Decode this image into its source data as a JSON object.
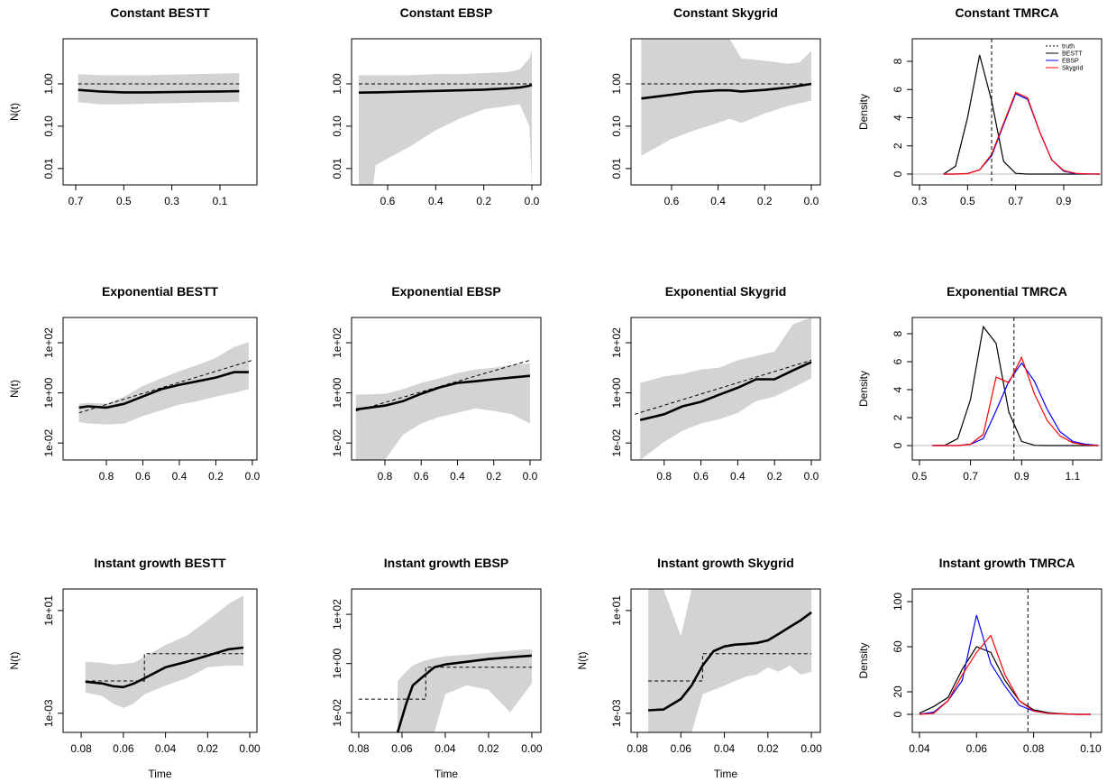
{
  "chart_data": [
    {
      "type": "skyline",
      "title": "Constant BESTT",
      "ylabel": "N(t)",
      "log_y": true,
      "band_color": "#d3d3d3",
      "line_color": "#000000",
      "x": [
        0.69,
        0.6,
        0.5,
        0.4,
        0.3,
        0.2,
        0.1,
        0.02
      ],
      "median": [
        0.72,
        0.66,
        0.63,
        0.63,
        0.64,
        0.65,
        0.66,
        0.67
      ],
      "upper": [
        1.7,
        1.6,
        1.6,
        1.6,
        1.65,
        1.7,
        1.75,
        1.8
      ],
      "lower": [
        0.37,
        0.33,
        0.33,
        0.34,
        0.35,
        0.36,
        0.37,
        0.38
      ],
      "truth_x": [
        0.69,
        0.02
      ],
      "truth": [
        1,
        1
      ],
      "xlim": [
        0.7525,
        -0.054
      ],
      "ylim": [
        0.0041,
        11.6
      ],
      "xticks": [
        0.7,
        0.5,
        0.3,
        0.1
      ],
      "yticks": [
        0.01,
        {
          "value": 0.1,
          "label": "0.10"
        },
        {
          "value": 1,
          "label": "1.00"
        }
      ]
    },
    {
      "type": "skyline",
      "title": "Constant EBSP",
      "log_y": true,
      "band_color": "#d3d3d3",
      "line_color": "#000000",
      "x": [
        0.72,
        0.66,
        0.65,
        0.5,
        0.4,
        0.3,
        0.2,
        0.1,
        0.05,
        0.01,
        0
      ],
      "median": [
        0.62,
        0.63,
        0.63,
        0.66,
        0.68,
        0.7,
        0.73,
        0.78,
        0.82,
        0.9,
        0.95
      ],
      "upper": [
        1.6,
        1.6,
        1.6,
        1.6,
        1.7,
        1.7,
        1.8,
        1.9,
        2.2,
        4,
        6
      ],
      "lower": [
        0.0041,
        0.0041,
        0.012,
        0.035,
        0.08,
        0.15,
        0.25,
        0.3,
        0.33,
        0.1,
        0.0041
      ],
      "truth_x": [
        0.72,
        0
      ],
      "truth": [
        1,
        1
      ],
      "xlim": [
        0.75,
        -0.0375
      ],
      "ylim": [
        0.0041,
        11.6
      ],
      "xticks": [
        0.6,
        0.4,
        0.2,
        {
          "value": 0,
          "label": "0.0"
        }
      ],
      "yticks": [
        0.01,
        {
          "value": 0.1,
          "label": "0.10"
        },
        {
          "value": 1,
          "label": "1.00"
        }
      ]
    },
    {
      "type": "skyline",
      "title": "Constant Skygrid",
      "log_y": true,
      "band_color": "#d3d3d3",
      "line_color": "#000000",
      "x": [
        0.73,
        0.6,
        0.5,
        0.4,
        0.35,
        0.3,
        0.2,
        0.1,
        0.05,
        0
      ],
      "median": [
        0.45,
        0.55,
        0.65,
        0.7,
        0.7,
        0.66,
        0.72,
        0.82,
        0.9,
        1.0
      ],
      "upper": [
        11.6,
        11.6,
        11.6,
        11.6,
        11.6,
        4,
        3.5,
        3,
        3.2,
        6
      ],
      "lower": [
        0.02,
        0.05,
        0.08,
        0.12,
        0.15,
        0.12,
        0.2,
        0.3,
        0.35,
        0.4
      ],
      "truth_x": [
        0.73,
        0
      ],
      "truth": [
        1,
        1
      ],
      "xlim": [
        0.774,
        -0.039
      ],
      "ylim": [
        0.0041,
        11.6
      ],
      "xticks": [
        0.6,
        0.4,
        0.2,
        {
          "value": 0,
          "label": "0.0"
        }
      ],
      "yticks": [
        0.01,
        {
          "value": 0.1,
          "label": "0.10"
        },
        {
          "value": 1,
          "label": "1.00"
        }
      ]
    },
    {
      "type": "density",
      "title": "Constant TMRCA",
      "ylabel": "Density",
      "legend": "topright",
      "truth": 0.6,
      "truth_label": "truth",
      "x": [
        0.4,
        0.45,
        0.5,
        0.55,
        0.6,
        0.65,
        0.7,
        0.75,
        0.8,
        0.85,
        0.9,
        0.95,
        1.0,
        1.05
      ],
      "series": [
        {
          "name": "BESTT",
          "color": "#000000",
          "values": [
            0,
            0.56,
            4.0,
            8.45,
            5.2,
            0.9,
            0.05,
            0,
            0,
            0,
            0,
            0,
            0,
            0
          ]
        },
        {
          "name": "EBSP",
          "color": "#0000ff",
          "values": [
            0,
            0,
            0.04,
            0.3,
            1.3,
            3.5,
            5.7,
            5.3,
            3.0,
            1.0,
            0.2,
            0.03,
            0.01,
            0
          ]
        },
        {
          "name": "Skygrid",
          "color": "#ff0000",
          "values": [
            0,
            0,
            0.03,
            0.3,
            1.4,
            3.6,
            5.8,
            5.4,
            3.0,
            1.0,
            0.25,
            0.05,
            0.01,
            0
          ]
        }
      ],
      "xlim": [
        0.27,
        1.0575
      ],
      "ylim": [
        -0.77,
        9.6
      ],
      "xticks": [
        0.3,
        0.5,
        0.7,
        0.9
      ],
      "yticks": [
        0,
        2,
        4,
        6,
        8
      ]
    },
    {
      "type": "skyline",
      "title": "Exponential BESTT",
      "ylabel": "N(t)",
      "log_y": true,
      "band_color": "#d3d3d3",
      "line_color": "#000000",
      "x": [
        0.95,
        0.9,
        0.8,
        0.7,
        0.6,
        0.5,
        0.4,
        0.3,
        0.2,
        0.1,
        0.02
      ],
      "median": [
        0.26,
        0.29,
        0.26,
        0.37,
        0.72,
        1.4,
        2.1,
        2.9,
        4.1,
        6.7,
        6.7
      ],
      "upper": [
        0.37,
        0.4,
        0.37,
        0.72,
        1.9,
        3.8,
        7.3,
        13,
        25,
        68,
        105
      ],
      "lower": [
        0.07,
        0.06,
        0.055,
        0.06,
        0.12,
        0.2,
        0.34,
        0.47,
        0.72,
        1,
        1.4
      ],
      "truth_x": [
        0.95,
        0
      ],
      "truth": [
        0.16,
        20
      ],
      "xlim": [
        1.037,
        -0.025
      ],
      "ylim": [
        0.0021,
        1020
      ],
      "xticks": [
        0.8,
        0.6,
        0.4,
        0.2,
        {
          "value": 0,
          "label": "0.0"
        }
      ],
      "yticks": [
        {
          "value": 0.01,
          "label": "1e-02"
        },
        {
          "value": 1,
          "label": "1e+00"
        },
        {
          "value": 100,
          "label": "1e+02"
        }
      ]
    },
    {
      "type": "skyline",
      "title": "Exponential EBSP",
      "log_y": true,
      "band_color": "#d3d3d3",
      "line_color": "#000000",
      "x": [
        0.96,
        0.8,
        0.7,
        0.6,
        0.5,
        0.4,
        0.3,
        0.2,
        0.1,
        0
      ],
      "median": [
        0.22,
        0.31,
        0.47,
        0.92,
        1.65,
        2.5,
        2.9,
        3.5,
        4.1,
        4.8
      ],
      "upper": [
        0.85,
        0.92,
        1.4,
        2.5,
        3.8,
        6.2,
        8.6,
        10,
        13,
        15
      ],
      "lower": [
        0.0021,
        0.0021,
        0.022,
        0.06,
        0.11,
        0.16,
        0.24,
        0.19,
        0.14,
        0.06
      ],
      "truth_x": [
        0.96,
        0
      ],
      "truth": [
        0.19,
        20
      ],
      "xlim": [
        0.984,
        -0.06
      ],
      "ylim": [
        0.0021,
        1020
      ],
      "xticks": [
        0.8,
        0.6,
        0.4,
        0.2,
        {
          "value": 0,
          "label": "0.0"
        }
      ],
      "yticks": [
        {
          "value": 0.01,
          "label": "1e-02"
        },
        {
          "value": 1,
          "label": "1e+00"
        },
        {
          "value": 100,
          "label": "1e+02"
        }
      ]
    },
    {
      "type": "skyline",
      "title": "Exponential Skygrid",
      "log_y": true,
      "band_color": "#d3d3d3",
      "line_color": "#000000",
      "x": [
        0.93,
        0.8,
        0.7,
        0.6,
        0.5,
        0.4,
        0.3,
        0.2,
        0.1,
        0
      ],
      "median": [
        0.083,
        0.14,
        0.29,
        0.44,
        0.85,
        1.6,
        3.5,
        3.5,
        7.9,
        17
      ],
      "upper": [
        2.5,
        4.5,
        5.7,
        8.6,
        10,
        20,
        30,
        45,
        550,
        1020
      ],
      "lower": [
        0.0021,
        0.011,
        0.031,
        0.06,
        0.09,
        0.16,
        0.47,
        0.72,
        1.6,
        3.8
      ],
      "truth_x": [
        0.96,
        0
      ],
      "truth": [
        0.14,
        20
      ],
      "xlim": [
        0.98,
        -0.049
      ],
      "ylim": [
        0.0021,
        1020
      ],
      "xticks": [
        0.8,
        0.6,
        0.4,
        0.2,
        {
          "value": 0,
          "label": "0.0"
        }
      ],
      "yticks": [
        {
          "value": 0.01,
          "label": "1e-02"
        },
        {
          "value": 1,
          "label": "1e+00"
        },
        {
          "value": 100,
          "label": "1e+02"
        }
      ]
    },
    {
      "type": "density",
      "title": "Exponential TMRCA",
      "ylabel": "Density",
      "truth": 0.87,
      "x": [
        0.55,
        0.6,
        0.65,
        0.7,
        0.75,
        0.8,
        0.85,
        0.9,
        0.95,
        1.0,
        1.05,
        1.1,
        1.15,
        1.2
      ],
      "series": [
        {
          "name": "BESTT",
          "color": "#000000",
          "values": [
            0,
            0.03,
            0.5,
            3.3,
            8.5,
            7.3,
            2.4,
            0.3,
            0.02,
            0,
            0,
            0,
            0,
            0
          ]
        },
        {
          "name": "EBSP",
          "color": "#0000ff",
          "values": [
            0,
            0,
            0,
            0.1,
            0.5,
            2.5,
            4.6,
            5.9,
            4.6,
            2.6,
            1.0,
            0.3,
            0.1,
            0.02
          ]
        },
        {
          "name": "Skygrid",
          "color": "#ff0000",
          "values": [
            0,
            0,
            0,
            0.1,
            0.8,
            4.9,
            4.5,
            6.3,
            3.7,
            1.8,
            0.7,
            0.2,
            0.05,
            0
          ]
        }
      ],
      "xlim": [
        0.472,
        1.213
      ],
      "ylim": [
        -1.03,
        9.16
      ],
      "xticks": [
        0.5,
        0.7,
        0.9,
        1.1
      ],
      "yticks": [
        0,
        2,
        4,
        6,
        8
      ]
    },
    {
      "type": "skyline",
      "title": "Instant growth BESTT",
      "ylabel": "N(t)",
      "xlabel": "Time",
      "log_y": true,
      "band_color": "#d3d3d3",
      "line_color": "#000000",
      "x": [
        0.078,
        0.07,
        0.065,
        0.06,
        0.055,
        0.05,
        0.04,
        0.03,
        0.02,
        0.01,
        0.003
      ],
      "median": [
        0.017,
        0.0144,
        0.0113,
        0.0104,
        0.0144,
        0.023,
        0.062,
        0.1,
        0.175,
        0.31,
        0.36
      ],
      "upper": [
        0.1,
        0.092,
        0.079,
        0.085,
        0.092,
        0.16,
        0.46,
        1.04,
        4.1,
        18,
        39
      ],
      "lower": [
        0.0064,
        0.0047,
        0.0024,
        0.0016,
        0.0024,
        0.0055,
        0.012,
        0.023,
        0.062,
        0.072,
        0.072
      ],
      "truth_x": [
        0.078,
        0.05,
        0.05,
        0.003
      ],
      "truth": [
        0.018,
        0.018,
        0.21,
        0.21
      ],
      "xlim": [
        0.0886,
        -0.0034
      ],
      "ylim": [
        0.00018,
        69
      ],
      "xticks": [
        0.08,
        0.06,
        0.04,
        0.02,
        {
          "value": 0,
          "label": "0.00"
        }
      ],
      "yticks": [
        {
          "value": 0.001,
          "label": "1e-03"
        },
        {
          "value": 10,
          "label": "1e+01"
        }
      ]
    },
    {
      "type": "skyline",
      "title": "Instant growth EBSP",
      "xlabel": "Time",
      "log_y": true,
      "band_color": "#d3d3d3",
      "line_color": "#000000",
      "x": [
        0.062,
        0.058,
        0.055,
        0.05,
        0.045,
        0.04,
        0.03,
        0.02,
        0.01,
        0
      ],
      "median": [
        0.0016,
        0.024,
        0.13,
        0.31,
        0.71,
        0.92,
        1.18,
        1.52,
        1.8,
        2.1
      ],
      "upper": [
        0.2,
        0.47,
        0.84,
        1.29,
        1.66,
        1.97,
        2.3,
        2.75,
        3.3,
        3.9
      ],
      "lower": [
        0.0016,
        0.0016,
        0.0016,
        0.0016,
        0.0016,
        0.057,
        0.13,
        0.086,
        0.0104,
        0.156
      ],
      "truth_x": [
        0.08,
        0.049,
        0.049,
        0
      ],
      "truth": [
        0.036,
        0.036,
        0.71,
        0.71
      ],
      "xlim": [
        0.0833,
        -0.0042
      ],
      "ylim": [
        0.0016,
        1070
      ],
      "xticks": [
        0.08,
        0.06,
        0.04,
        0.02,
        {
          "value": 0,
          "label": "0.00"
        }
      ],
      "yticks": [
        {
          "value": 0.01,
          "label": "1e-02"
        },
        {
          "value": 1,
          "label": "1e+00"
        },
        {
          "value": 100,
          "label": "1e+02"
        }
      ]
    },
    {
      "type": "skyline",
      "title": "Instant growth Skygrid",
      "ylabel": "N(t)",
      "xlabel": "Time",
      "log_y": true,
      "band_color": "#d3d3d3",
      "line_color": "#000000",
      "x": [
        0.075,
        0.068,
        0.06,
        0.055,
        0.05,
        0.045,
        0.04,
        0.035,
        0.03,
        0.025,
        0.02,
        0.015,
        0.01,
        0.005,
        0
      ],
      "median": [
        0.0013,
        0.0014,
        0.0036,
        0.0123,
        0.072,
        0.26,
        0.4,
        0.47,
        0.5,
        0.55,
        0.69,
        1.23,
        2.3,
        4.1,
        8.5
      ],
      "upper": [
        69,
        69,
        1.0,
        69,
        69,
        69,
        69,
        69,
        69,
        69,
        69,
        69,
        69,
        69,
        69
      ],
      "lower": [
        0.00018,
        0.00018,
        0.00018,
        0.00018,
        0.0055,
        0.0081,
        0.012,
        0.018,
        0.027,
        0.032,
        0.062,
        0.041,
        0.072,
        0.032,
        0.041
      ],
      "truth_x": [
        0.075,
        0.05,
        0.05,
        0
      ],
      "truth": [
        0.018,
        0.018,
        0.21,
        0.21
      ],
      "xlim": [
        0.0829,
        -0.0041
      ],
      "ylim": [
        0.00018,
        69
      ],
      "xticks": [
        0.08,
        0.06,
        0.04,
        0.02,
        {
          "value": 0,
          "label": "0.00"
        }
      ],
      "yticks": [
        {
          "value": 0.001,
          "label": "1e-03"
        },
        {
          "value": 10,
          "label": "1e+01"
        }
      ]
    },
    {
      "type": "density",
      "title": "Instant growth TMRCA",
      "ylabel": "Density",
      "truth": 0.078,
      "x": [
        0.04,
        0.045,
        0.05,
        0.055,
        0.06,
        0.065,
        0.07,
        0.075,
        0.08,
        0.085,
        0.09,
        0.095,
        0.1
      ],
      "series": [
        {
          "name": "BESTT",
          "color": "#000000",
          "values": [
            1,
            7,
            15,
            40,
            60,
            55,
            30,
            12,
            4,
            1.5,
            0.5,
            0,
            0
          ]
        },
        {
          "name": "EBSP",
          "color": "#0000ff",
          "values": [
            0,
            2,
            12,
            30,
            88,
            45,
            25,
            8,
            3,
            1,
            0.5,
            0,
            0
          ]
        },
        {
          "name": "Skygrid",
          "color": "#ff0000",
          "values": [
            0,
            1,
            12,
            35,
            55,
            70,
            35,
            12,
            3,
            1,
            0.5,
            0,
            0
          ]
        }
      ],
      "xlim": [
        0.0375,
        0.1038
      ],
      "ylim": [
        -16,
        111.2
      ],
      "xticks": [
        0.04,
        0.06,
        0.08,
        {
          "value": 0.1,
          "label": "0.10"
        }
      ],
      "yticks": [
        0,
        20,
        60,
        100
      ]
    }
  ]
}
